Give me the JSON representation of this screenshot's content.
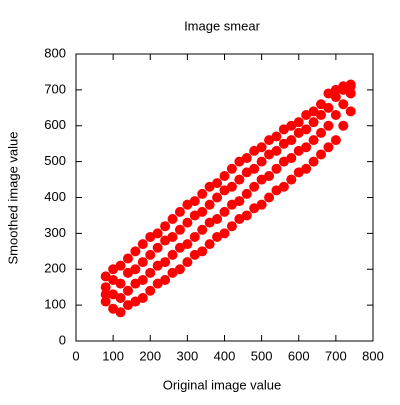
{
  "chart_data": {
    "type": "scatter",
    "title": "Image smear",
    "x_label": "Original image value",
    "y_label": "Smoothed image value",
    "color": "#ff0000",
    "xlim": [
      0,
      800
    ],
    "ylim": [
      0,
      800
    ],
    "xticks": [
      0,
      100,
      200,
      300,
      400,
      500,
      600,
      700,
      800
    ],
    "yticks": [
      0,
      100,
      200,
      300,
      400,
      500,
      600,
      700,
      800
    ],
    "grid": false,
    "x": [
      80,
      80,
      80,
      80,
      100,
      100,
      100,
      100,
      120,
      120,
      120,
      120,
      140,
      140,
      140,
      140,
      160,
      160,
      160,
      160,
      180,
      180,
      180,
      180,
      200,
      200,
      200,
      200,
      220,
      220,
      220,
      220,
      240,
      240,
      240,
      240,
      260,
      260,
      260,
      260,
      280,
      280,
      280,
      280,
      300,
      300,
      300,
      300,
      320,
      320,
      320,
      320,
      340,
      340,
      340,
      340,
      360,
      360,
      360,
      360,
      380,
      380,
      380,
      380,
      400,
      400,
      400,
      400,
      420,
      420,
      420,
      420,
      440,
      440,
      440,
      440,
      460,
      460,
      460,
      460,
      480,
      480,
      480,
      480,
      500,
      500,
      500,
      500,
      520,
      520,
      520,
      520,
      540,
      540,
      540,
      540,
      560,
      560,
      560,
      560,
      580,
      580,
      580,
      580,
      600,
      600,
      600,
      600,
      620,
      620,
      620,
      620,
      640,
      640,
      640,
      640,
      660,
      660,
      660,
      660,
      680,
      680,
      680,
      680,
      700,
      700,
      700,
      700,
      720,
      720,
      720,
      720,
      740,
      740,
      740,
      740
    ],
    "y": [
      110,
      150,
      180,
      130,
      90,
      130,
      170,
      200,
      80,
      120,
      160,
      210,
      100,
      140,
      190,
      230,
      110,
      160,
      200,
      250,
      120,
      170,
      220,
      270,
      140,
      190,
      240,
      290,
      160,
      210,
      260,
      300,
      170,
      220,
      280,
      320,
      190,
      240,
      290,
      340,
      200,
      260,
      310,
      360,
      220,
      270,
      330,
      380,
      240,
      290,
      350,
      390,
      250,
      310,
      360,
      410,
      270,
      330,
      380,
      430,
      290,
      340,
      400,
      440,
      300,
      360,
      420,
      460,
      320,
      380,
      430,
      480,
      340,
      390,
      450,
      500,
      350,
      410,
      470,
      510,
      370,
      430,
      480,
      530,
      380,
      450,
      500,
      540,
      400,
      460,
      520,
      560,
      420,
      480,
      530,
      570,
      430,
      500,
      550,
      590,
      450,
      510,
      560,
      600,
      470,
      530,
      580,
      610,
      480,
      540,
      590,
      630,
      500,
      560,
      610,
      640,
      520,
      580,
      630,
      660,
      540,
      600,
      650,
      690,
      560,
      630,
      680,
      700,
      600,
      660,
      700,
      710,
      640,
      690,
      710,
      715
    ]
  }
}
